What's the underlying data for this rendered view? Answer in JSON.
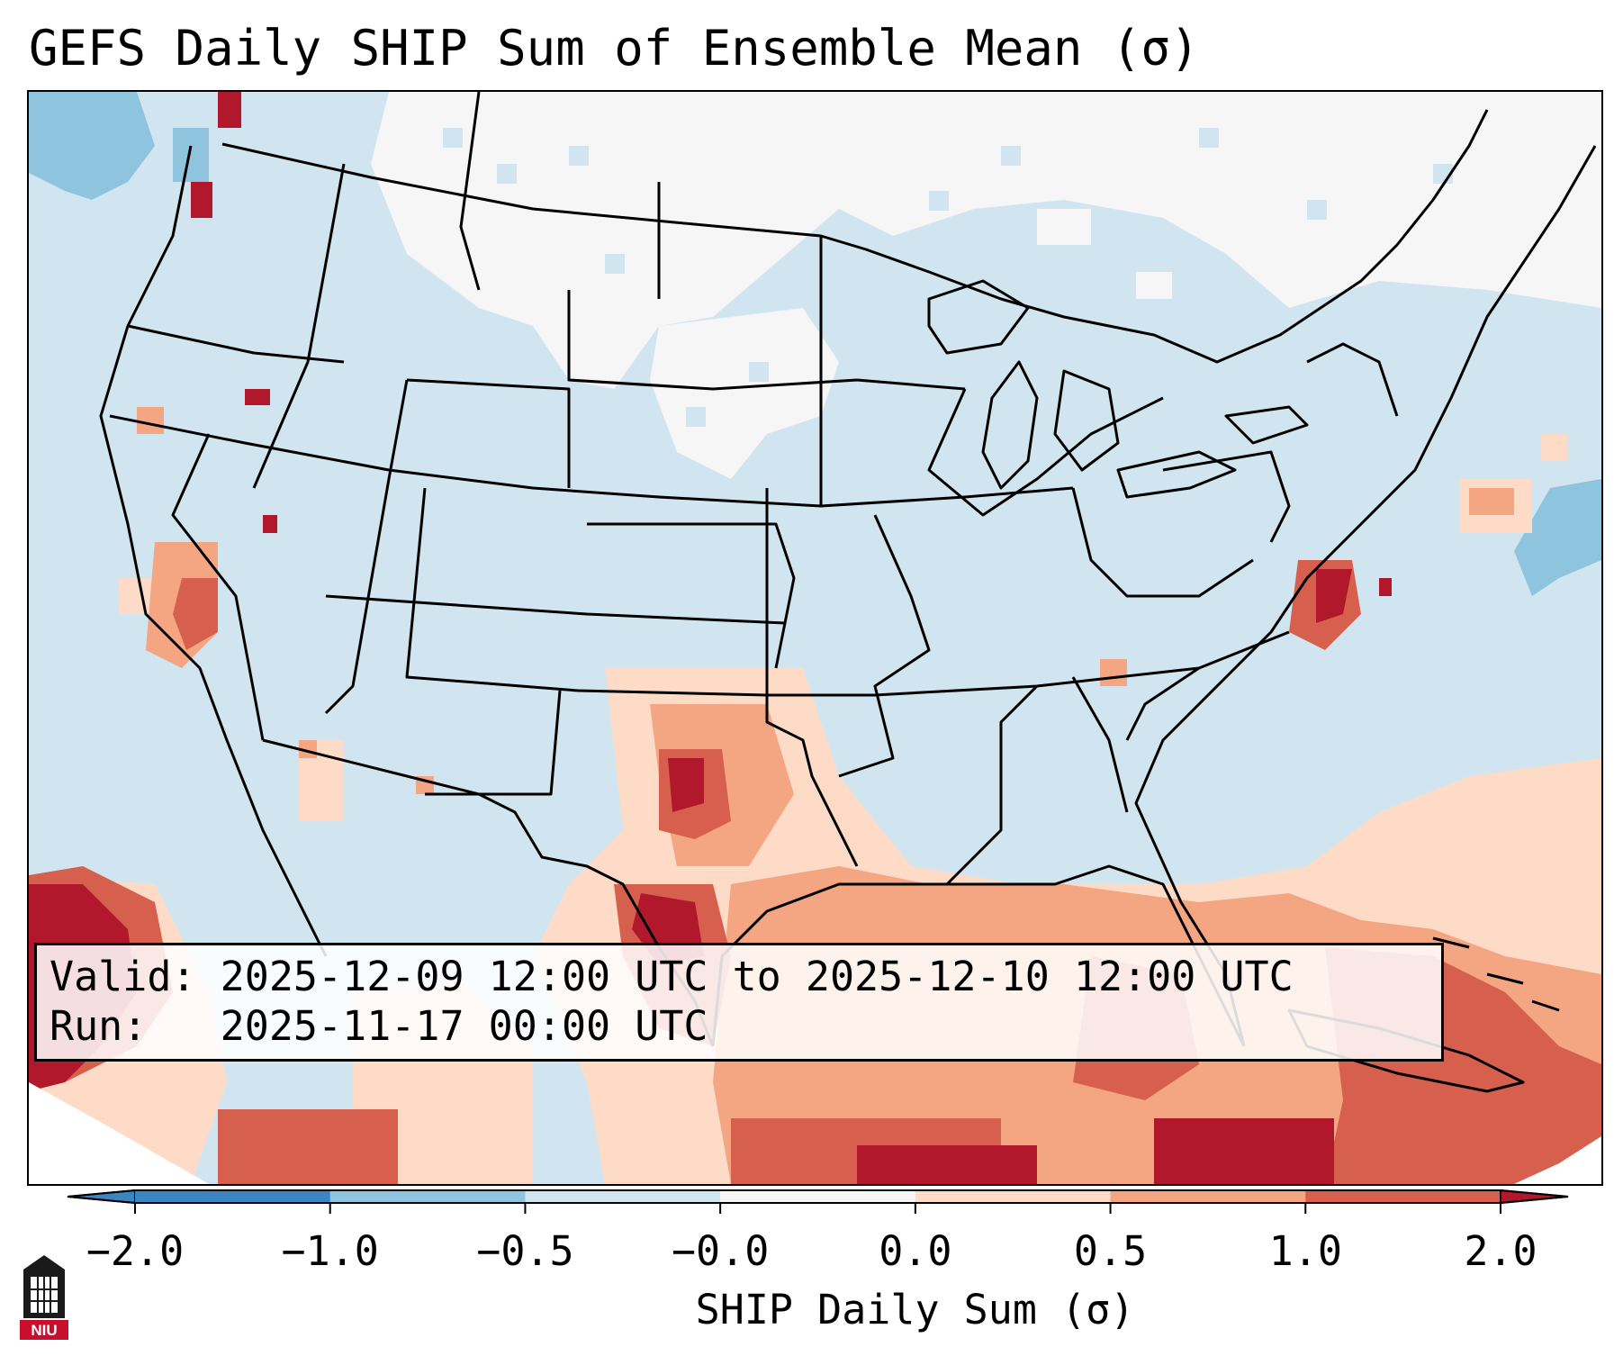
{
  "title": "GEFS Daily SHIP Sum of Ensemble Mean (σ)",
  "info": {
    "valid_line": "Valid: 2025-12-09 12:00 UTC to 2025-12-10 12:00 UTC",
    "run_line": "Run:   2025-11-17 00:00 UTC"
  },
  "colorbar": {
    "label": "SHIP Daily Sum (σ)",
    "ticks": [
      "−2.0",
      "−1.0",
      "−0.5",
      "−0.0",
      "0.0",
      "0.5",
      "1.0",
      "2.0"
    ],
    "colors": [
      "#3b85c1",
      "#8fc4de",
      "#d1e5f0",
      "#f6f6f6",
      "#fddbc7",
      "#f4a582",
      "#d6604d",
      "#b2182b"
    ],
    "extend": "both"
  },
  "map": {
    "projection": "Lambert conformal, CONUS",
    "background_color": "#d1e5f0",
    "boundaries": "US states, Canada, Mexico, Caribbean",
    "regions": [
      {
        "name": "Gulf of Mexico",
        "value": 0.75
      },
      {
        "name": "Texas",
        "value": 1.5
      },
      {
        "name": "Florida",
        "value": 0.75
      },
      {
        "name": "Caribbean",
        "value": 1.5
      },
      {
        "name": "Pacific southwest",
        "value": 2.0
      },
      {
        "name": "Central California",
        "value": 1.0
      },
      {
        "name": "Virginia",
        "value": 1.5
      },
      {
        "name": "Northern Plains",
        "value": -0.25
      }
    ]
  },
  "logo": {
    "text": "NIU",
    "color": "#c8102e"
  }
}
